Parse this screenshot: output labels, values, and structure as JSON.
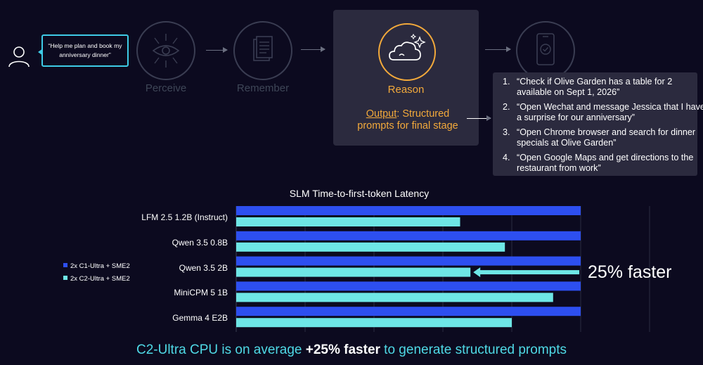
{
  "workflow": {
    "user_prompt": "“Help me plan and book my anniversary dinner”",
    "stages": {
      "perceive": "Perceive",
      "remember": "Remember",
      "reason": "Reason"
    },
    "output_key": "Output",
    "output_text": ": Structured prompts for final stage",
    "prompts": [
      "“Check if Olive Garden has a table for 2 available on Sept 1, 2026”",
      "“Open Wechat and message Jessica that I have a surprise for our anniversary”",
      "“Open Chrome browser and search for dinner specials at Olive Garden”",
      "“Open Google Maps and get directions to the restaurant from work”"
    ]
  },
  "chart_data": {
    "type": "bar",
    "orientation": "horizontal",
    "title": "SLM Time-to-first-token Latency",
    "xlabel": "",
    "ylabel": "",
    "categories": [
      "LFM 2.5 1.2B (Instruct)",
      "Qwen 3.5 0.8B",
      "Qwen 3.5 2B",
      "MiniCPM 5 1B",
      "Gemma 4 E2B"
    ],
    "series": [
      {
        "name": "2x C1-Ultra + SME2",
        "color": "#2d4ff0",
        "values": [
          1.0,
          1.0,
          1.0,
          1.0,
          1.0
        ]
      },
      {
        "name": "2x C2-Ultra + SME2",
        "color": "#6ee6e6",
        "values": [
          0.65,
          0.78,
          0.68,
          0.92,
          0.8
        ]
      }
    ],
    "xlim": [
      0,
      1.2
    ],
    "grid": true,
    "legend": "left",
    "annotation": "25% faster"
  },
  "footer": {
    "prefix": "C2-Ultra CPU is on average ",
    "highlight": "+25% faster",
    "suffix": " to generate structured prompts"
  },
  "colors": {
    "background": "#0c0a1f",
    "accent_orange": "#f2a93b",
    "accent_cyan": "#4fd9e6",
    "bar_blue": "#2d4ff0",
    "bar_cyan": "#6ee6e6"
  }
}
